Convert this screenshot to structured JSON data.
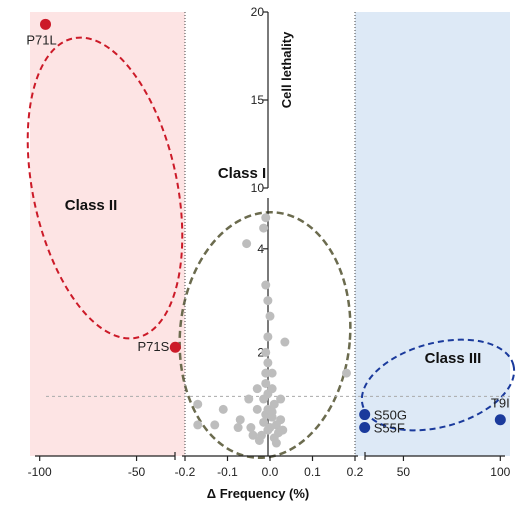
{
  "chart_data": {
    "type": "scatter",
    "title": "",
    "xlabel": "Δ Frequency (%)",
    "ylabel": "Cell lethality",
    "colors": {
      "class_ii": "#cc1a28",
      "class_iii": "#1a3a9c",
      "class_i": "#bdbdbd",
      "left_band": "#fde4e4",
      "right_band": "#dde9f6",
      "class_i_ellipse": "#6b6b4e"
    },
    "x_axis": {
      "segments": [
        {
          "range": [
            -105,
            -25
          ],
          "ticks": [
            {
              "v": -100,
              "label": "-100"
            },
            {
              "v": -50,
              "label": "-50"
            }
          ]
        },
        {
          "range": [
            -0.2,
            0.2
          ],
          "ticks": [
            {
              "v": -0.2,
              "label": "-0.2"
            },
            {
              "v": -0.1,
              "label": "-0.1"
            },
            {
              "v": 0.0,
              "label": "0.0"
            },
            {
              "v": 0.1,
              "label": "0.1"
            },
            {
              "v": 0.2,
              "label": "0.2"
            }
          ]
        },
        {
          "range": [
            25,
            105
          ],
          "ticks": [
            {
              "v": 50,
              "label": "50"
            },
            {
              "v": 100,
              "label": "100"
            }
          ]
        }
      ]
    },
    "y_axis": {
      "segments": [
        {
          "range": [
            0,
            5
          ],
          "ticks": [
            {
              "v": 2,
              "label": "2"
            },
            {
              "v": 4,
              "label": "4"
            }
          ]
        },
        {
          "range": [
            10,
            20
          ],
          "ticks": [
            {
              "v": 10,
              "label": "10"
            },
            {
              "v": 15,
              "label": "15"
            },
            {
              "v": 20,
              "label": "20"
            }
          ]
        }
      ]
    },
    "threshold_y": 1.15,
    "annotations": [
      "Class I",
      "Class II",
      "Class III"
    ],
    "series": [
      {
        "class": "Class II",
        "points": [
          {
            "x": -97,
            "y": 19.3,
            "label": "P71L"
          },
          {
            "x": -30,
            "y": 2.1,
            "label": "P71S"
          }
        ]
      },
      {
        "class": "Class III",
        "points": [
          {
            "x": 100,
            "y": 0.7,
            "label": "T9I"
          },
          {
            "x": 30,
            "y": 0.8,
            "label": "S50G"
          },
          {
            "x": 30,
            "y": 0.55,
            "label": "S55F"
          }
        ]
      },
      {
        "class": "Class I",
        "points": [
          {
            "x": -0.17,
            "y": 1.0
          },
          {
            "x": -0.13,
            "y": 0.6
          },
          {
            "x": -0.11,
            "y": 0.9
          },
          {
            "x": -0.17,
            "y": 0.6
          },
          {
            "x": -0.075,
            "y": 0.55
          },
          {
            "x": -0.07,
            "y": 0.7
          },
          {
            "x": -0.045,
            "y": 0.55
          },
          {
            "x": -0.04,
            "y": 0.4
          },
          {
            "x": -0.03,
            "y": 1.3
          },
          {
            "x": -0.03,
            "y": 0.9
          },
          {
            "x": -0.05,
            "y": 1.1
          },
          {
            "x": -0.055,
            "y": 4.1
          },
          {
            "x": -0.015,
            "y": 4.4
          },
          {
            "x": -0.01,
            "y": 4.6
          },
          {
            "x": -0.005,
            "y": 2.3
          },
          {
            "x": -0.01,
            "y": 2.0
          },
          {
            "x": -0.005,
            "y": 1.8
          },
          {
            "x": -0.01,
            "y": 1.6
          },
          {
            "x": 0.005,
            "y": 1.6
          },
          {
            "x": -0.01,
            "y": 1.4
          },
          {
            "x": 0.005,
            "y": 1.3
          },
          {
            "x": -0.015,
            "y": 1.1
          },
          {
            "x": 0.01,
            "y": 1.0
          },
          {
            "x": -0.005,
            "y": 0.9
          },
          {
            "x": -0.01,
            "y": 0.8
          },
          {
            "x": 0.005,
            "y": 0.75
          },
          {
            "x": -0.015,
            "y": 0.65
          },
          {
            "x": 0.015,
            "y": 0.6
          },
          {
            "x": -0.005,
            "y": 0.5
          },
          {
            "x": 0.02,
            "y": 0.45
          },
          {
            "x": -0.02,
            "y": 0.4
          },
          {
            "x": 0.01,
            "y": 0.35
          },
          {
            "x": 0.025,
            "y": 0.7
          },
          {
            "x": 0.025,
            "y": 1.1
          },
          {
            "x": 0.03,
            "y": 0.5
          },
          {
            "x": 0.035,
            "y": 2.2
          },
          {
            "x": -0.025,
            "y": 0.3
          },
          {
            "x": 0.015,
            "y": 0.25
          },
          {
            "x": -0.01,
            "y": 3.3
          },
          {
            "x": -0.005,
            "y": 3.0
          },
          {
            "x": 0.0,
            "y": 2.7
          },
          {
            "x": 0.18,
            "y": 1.6
          },
          {
            "x": 0.0,
            "y": 0.55
          },
          {
            "x": 0.005,
            "y": 0.85
          },
          {
            "x": -0.005,
            "y": 1.2
          }
        ]
      }
    ]
  }
}
